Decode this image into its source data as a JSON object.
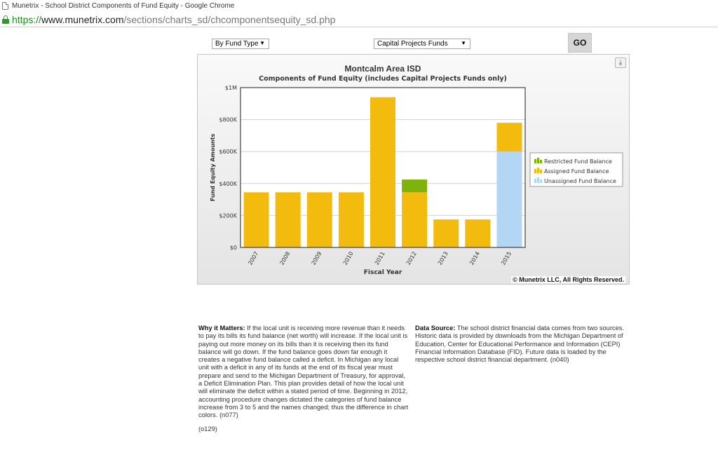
{
  "window": {
    "title": "Munetrix - School District Components of Fund Equity - Google Chrome"
  },
  "address_bar": {
    "scheme": "https://",
    "host": "www.munetrix.com",
    "path": "/sections/charts_sd/chcomponentsequity_sd.php"
  },
  "controls": {
    "fund_type_select": "By Fund Type",
    "fund_select": "Capital Projects Funds",
    "go_label": "GO"
  },
  "chart_data": {
    "type": "bar",
    "stacked": true,
    "title": "Montcalm Area ISD",
    "subtitle": "Components of Fund Equity (includes Capital Projects Funds only)",
    "xlabel": "Fiscal Year",
    "ylabel": "Fund Equity Amounts",
    "categories": [
      "2007",
      "2008",
      "2009",
      "2010",
      "2011",
      "2012",
      "2013",
      "2014",
      "2015"
    ],
    "series": [
      {
        "name": "Unassigned Fund Balance",
        "color": "#b2d6f3",
        "values": [
          0,
          0,
          0,
          0,
          0,
          0,
          0,
          0,
          600000
        ]
      },
      {
        "name": "Assigned Fund Balance",
        "color": "#f4bb0f",
        "values": [
          345000,
          345000,
          345000,
          345000,
          940000,
          345000,
          175000,
          175000,
          180000
        ]
      },
      {
        "name": "Restricted Fund Balance",
        "color": "#7fb20a",
        "values": [
          0,
          0,
          0,
          0,
          0,
          80000,
          0,
          0,
          0
        ]
      }
    ],
    "legend_order": [
      "Restricted Fund Balance",
      "Assigned Fund Balance",
      "Unassigned Fund Balance"
    ],
    "yticks": [
      {
        "value": 0,
        "label": "$0"
      },
      {
        "value": 200000,
        "label": "$200K"
      },
      {
        "value": 400000,
        "label": "$400K"
      },
      {
        "value": 600000,
        "label": "$600K"
      },
      {
        "value": 800000,
        "label": "$800K"
      },
      {
        "value": 1000000,
        "label": "$1M"
      }
    ],
    "ylim": [
      0,
      1000000
    ],
    "legend_position": "right",
    "grid": true
  },
  "chart_footer": {
    "copyright": "© Munetrix LLC, All Rights Reserved."
  },
  "notes": {
    "why_heading": "Why it Matters:",
    "why_text": " If the local unit is receiving more revenue than it needs to pay its bills its fund balance (net worth) will increase. If the local unit is paying out more money on its bills than it is receiving then its fund balance will go down. If the fund balance goes down far enough it creates a negative fund balance called a deficit. In Michigan any local unit with a deficit in any of its funds at the end of its fiscal year must prepare and send to the Michigan Department of Treasury, for approval, a Deficit Elimination Plan. This plan provides detail of how the local unit will eliminate the deficit within a stated period of time. Beginning in 2012, accounting procedure changes dictated the categories of fund balance increase from 3 to 5 and the names changed; thus the difference in chart colors. (n077)",
    "source_heading": "Data Source:",
    "source_text": " The school district financial data comes from two sources. Historic data is provided by downloads from the Michigan Department of Education, Center for Educational Performance and Information (CEPI) Financial Information Database (FID). Future data is loaded by the respective school district financial department. (n040)",
    "page_code": "(o129)"
  }
}
